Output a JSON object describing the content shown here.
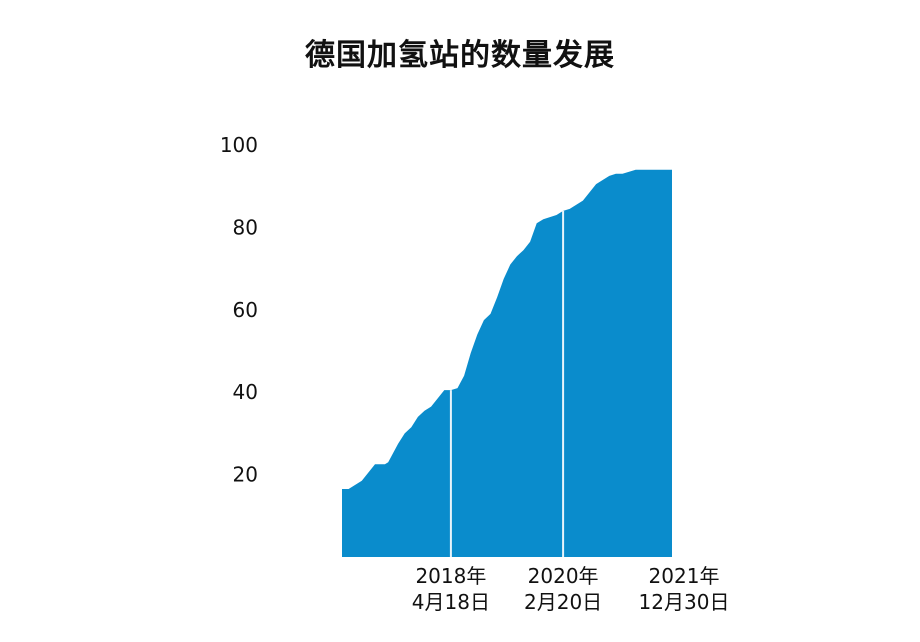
{
  "chart_data": {
    "type": "area",
    "title": "德国加氢站的数量发展",
    "ylim": [
      0,
      100
    ],
    "yticks": [
      20,
      40,
      60,
      80,
      100
    ],
    "color": "#0a8ccc",
    "grid": false,
    "series": [
      {
        "x": [
          0,
          2,
          4,
          6,
          8,
          10,
          13,
          14,
          17,
          19,
          21,
          23,
          25,
          27,
          29,
          31,
          33,
          35,
          37,
          39,
          41,
          43,
          45,
          47,
          49,
          51,
          53,
          55,
          57,
          59,
          61,
          63,
          65,
          67,
          69,
          71,
          73,
          75,
          77,
          79,
          81,
          83,
          85,
          87,
          89,
          91,
          93,
          95,
          97,
          100
        ],
        "values": [
          16.5,
          16.5,
          17.5,
          18.5,
          20.5,
          22.5,
          22.5,
          23,
          27.5,
          30,
          31.5,
          34,
          35.5,
          36.5,
          38.5,
          40.5,
          40.5,
          41,
          44,
          49.5,
          54,
          57.5,
          59,
          63,
          67.5,
          71,
          73,
          74.5,
          76.5,
          81,
          82,
          82.5,
          83,
          84,
          84.5,
          85.5,
          86.5,
          88.5,
          90.5,
          91.5,
          92.5,
          93,
          93,
          93.5,
          94,
          94,
          94,
          94,
          94,
          94
        ]
      }
    ],
    "markers": [
      {
        "x": 33,
        "label_line1": "2018年",
        "label_line2": "4月18日"
      },
      {
        "x": 67,
        "label_line1": "2020年",
        "label_line2": "2月20日"
      },
      {
        "x": 100,
        "label_line1": "2021年",
        "label_line2": "12月30日"
      }
    ]
  }
}
